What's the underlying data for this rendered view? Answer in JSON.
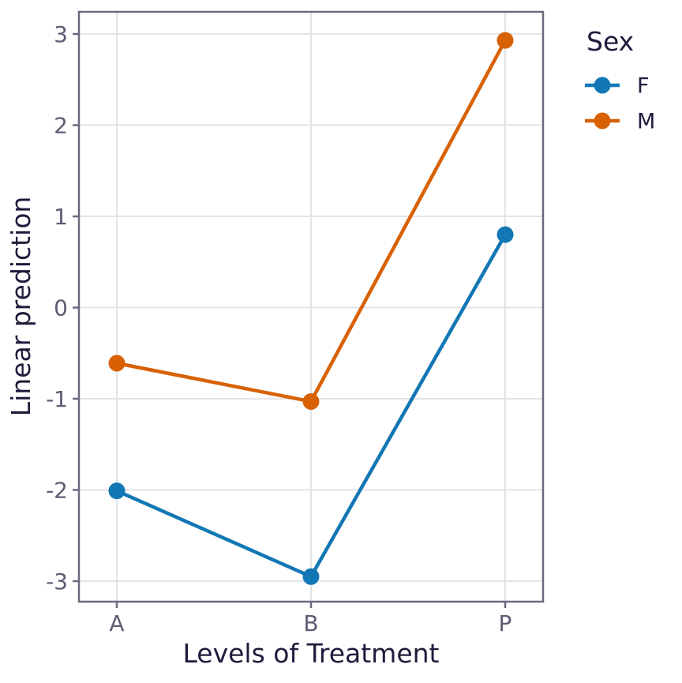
{
  "chart_data": {
    "type": "line",
    "title": "",
    "xlabel": "Levels of Treatment",
    "ylabel": "Linear prediction",
    "categories": [
      "A",
      "B",
      "P"
    ],
    "series": [
      {
        "name": "F",
        "color": "#1277B4",
        "values": [
          -2.01,
          -2.95,
          0.8
        ]
      },
      {
        "name": "M",
        "color": "#D76103",
        "values": [
          -0.61,
          -1.03,
          2.93
        ]
      }
    ],
    "y_ticks": [
      -3,
      -2,
      -1,
      0,
      1,
      2,
      3
    ],
    "y_tick_labels": [
      "-3",
      "-2",
      "-1",
      "0",
      "1",
      "2",
      "3"
    ],
    "ylim": [
      -3.225,
      3.243
    ],
    "grid": "major-only",
    "marker": "circle-with-line",
    "legend": {
      "title": "Sex",
      "position": "right-top"
    }
  },
  "colors": {
    "background": "#FFFFFF",
    "panel_background": "#FFFFFF",
    "gridline": "#E3E3E8",
    "panel_border": "#696A7D",
    "tick_mark": "#696A7D",
    "tick_label_text": "#5D5C74",
    "title_text": "#1E1C3C",
    "legend_text": "#1E1C3C"
  }
}
